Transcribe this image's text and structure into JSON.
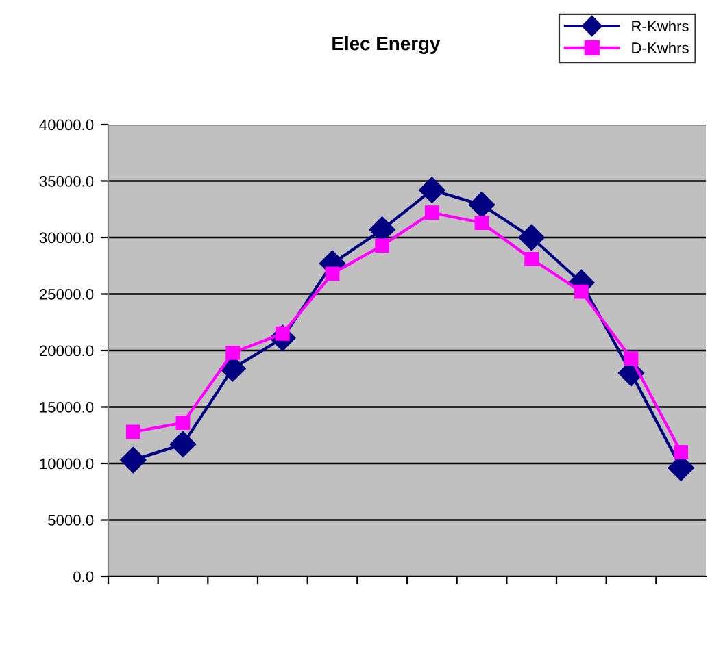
{
  "chart_data": {
    "type": "line",
    "title": "Elec Energy",
    "categories": [
      null,
      null,
      null,
      null,
      null,
      null,
      null,
      null,
      null,
      null,
      null,
      null
    ],
    "series": [
      {
        "name": "R-Kwhrs",
        "color": "#000080",
        "marker": "diamond",
        "values": [
          10300,
          11700,
          18400,
          21100,
          27700,
          30700,
          34200,
          32900,
          30000,
          26000,
          18000,
          9600
        ]
      },
      {
        "name": "D-Kwhrs",
        "color": "#ff00ff",
        "marker": "square",
        "values": [
          12800,
          13600,
          19800,
          21500,
          26800,
          29300,
          32200,
          31300,
          28100,
          25200,
          19300,
          11000
        ]
      }
    ],
    "ylim": [
      0,
      40000
    ],
    "yticks": [
      {
        "value": 0,
        "label": "0.0"
      },
      {
        "value": 5000,
        "label": "5000.0"
      },
      {
        "value": 10000,
        "label": "10000.0"
      },
      {
        "value": 15000,
        "label": "15000.0"
      },
      {
        "value": 20000,
        "label": "20000.0"
      },
      {
        "value": 25000,
        "label": "25000.0"
      },
      {
        "value": 30000,
        "label": "30000.0"
      },
      {
        "value": 35000,
        "label": "35000.0"
      },
      {
        "value": 40000,
        "label": "40000.0"
      }
    ],
    "grid": "y",
    "legend": "top right",
    "tick_labels": "y"
  }
}
